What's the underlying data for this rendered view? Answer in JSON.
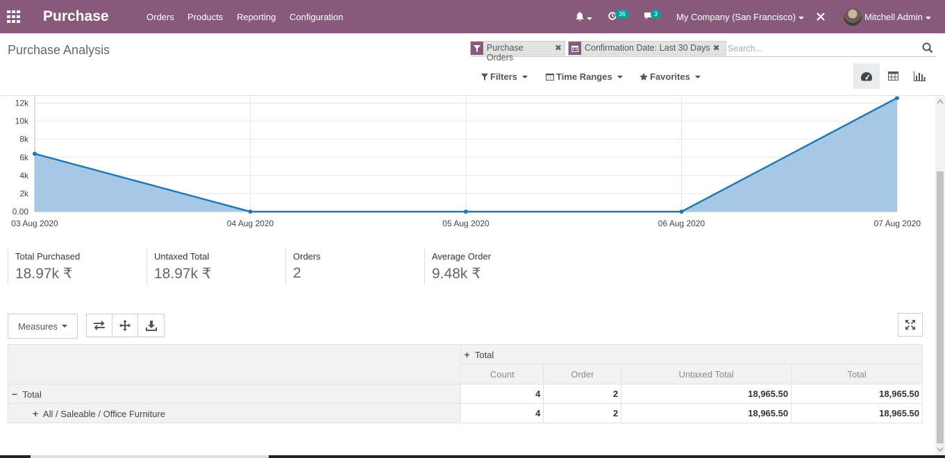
{
  "navbar": {
    "brand": "Purchase",
    "menu": [
      "Orders",
      "Products",
      "Reporting",
      "Configuration"
    ],
    "activity_count": "36",
    "messages_count": "3",
    "company": "My Company (San Francisco)",
    "user": "Mitchell Admin",
    "bg_color": "#875a7b"
  },
  "control_panel": {
    "title": "Purchase Analysis",
    "facets": [
      {
        "icon": "filter-icon",
        "label": "Purchase Orders"
      },
      {
        "icon": "calendar-icon",
        "label": "Confirmation Date: Last 30 Days"
      }
    ],
    "search_placeholder": "Search...",
    "filters_label": "Filters",
    "time_ranges_label": "Time Ranges",
    "favorites_label": "Favorites",
    "views": [
      "dashboard-icon",
      "pivot-table-icon",
      "graph-icon"
    ],
    "active_view": "dashboard-icon"
  },
  "chart_data": {
    "type": "area",
    "x": [
      "03 Aug 2020",
      "04 Aug 2020",
      "05 Aug 2020",
      "06 Aug 2020",
      "07 Aug 2020"
    ],
    "values": [
      6400,
      0,
      0,
      0,
      12565.5
    ],
    "y_ticks": [
      "0.00",
      "2k",
      "4k",
      "6k",
      "8k",
      "10k",
      "12k"
    ],
    "ylim": [
      0,
      12500
    ],
    "grid": true,
    "line_color": "#1f77b4",
    "fill_color": "#a6c8e5"
  },
  "kpis": [
    {
      "label": "Total Purchased",
      "value": "18.97k ₹"
    },
    {
      "label": "Untaxed Total",
      "value": "18.97k ₹"
    },
    {
      "label": "Orders",
      "value": "2"
    },
    {
      "label": "Average Order",
      "value": "9.48k ₹"
    }
  ],
  "pivot": {
    "measures_label": "Measures",
    "col_header": "Total",
    "measures": [
      "Count",
      "Order",
      "Untaxed Total",
      "Total"
    ],
    "rows": [
      {
        "label": "Total",
        "count": "4",
        "order": "2",
        "untaxed": "18,965.50",
        "total": "18,965.50"
      },
      {
        "label": "All / Saleable / Office Furniture",
        "count": "4",
        "order": "2",
        "untaxed": "18,965.50",
        "total": "18,965.50"
      }
    ]
  }
}
